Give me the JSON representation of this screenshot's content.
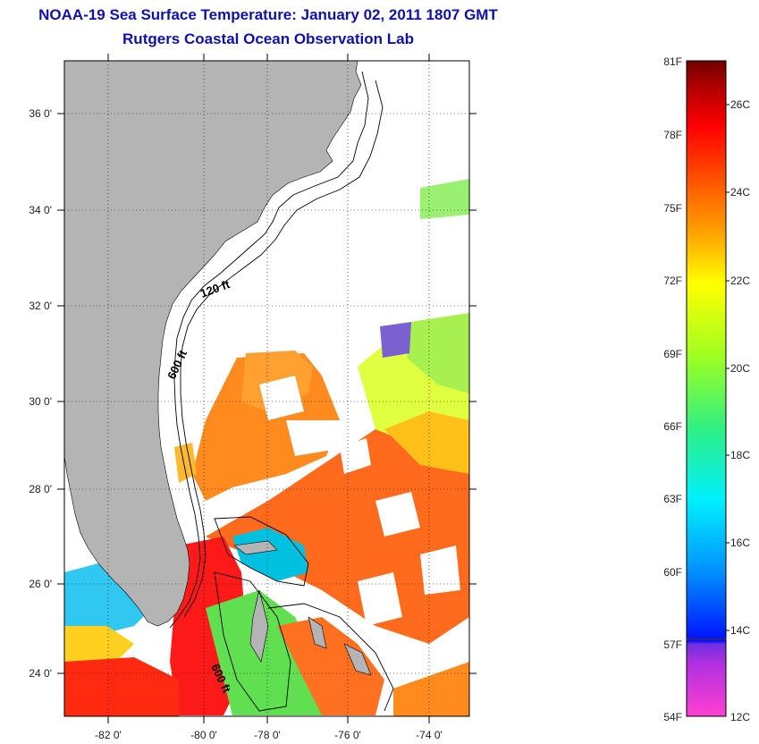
{
  "title": {
    "line1": "NOAA-19 Sea Surface Temperature:  January 02, 2011 1807 GMT",
    "line2": "Rutgers Coastal Ocean Observation Lab"
  },
  "map": {
    "lat_labels": [
      "36 0'",
      "34 0'",
      "32 0'",
      "30 0'",
      "28 0'",
      "26 0'",
      "24 0'"
    ],
    "lon_labels": [
      "-82 0'",
      "-80 0'",
      "-78 0'",
      "-76 0'",
      "-74 0'"
    ],
    "contour_labels": [
      "120 ft",
      "600 ft",
      "600 ft"
    ]
  },
  "colorbar": {
    "fahrenheit_labels": [
      "81F",
      "78F",
      "75F",
      "72F",
      "69F",
      "66F",
      "63F",
      "60F",
      "57F",
      "54F"
    ],
    "celsius_labels": [
      "26C",
      "24C",
      "22C",
      "20C",
      "18C",
      "16C",
      "14C",
      "12C"
    ],
    "colors": [
      "#ff40d0",
      "#9030e0",
      "#0010ff",
      "#0090ff",
      "#00f0ff",
      "#30f080",
      "#a0ff20",
      "#ffff00",
      "#ffa000",
      "#ff5000",
      "#ff0000",
      "#b00000",
      "#700000"
    ]
  },
  "colors": {
    "land": "#b4b4b4",
    "title": "#1010b0",
    "ocean_bg": "#ffffff"
  }
}
